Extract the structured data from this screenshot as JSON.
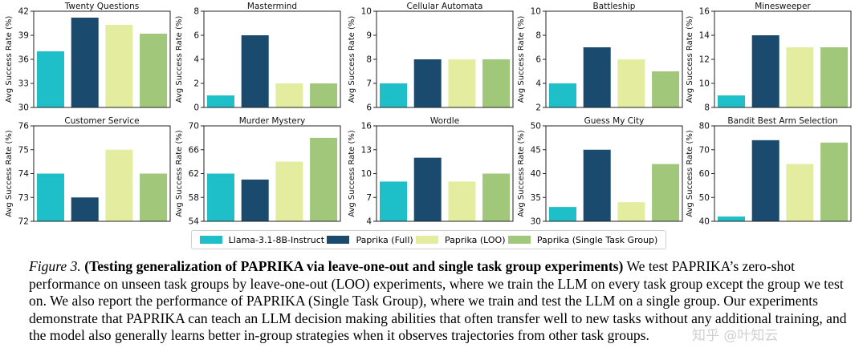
{
  "chart_data": [
    {
      "type": "bar",
      "title": "Twenty Questions",
      "ylabel": "Avg Success Rate (%)",
      "ylim": [
        30,
        42
      ],
      "yticks": [
        30,
        33,
        36,
        39,
        42
      ],
      "categories": [
        "Llama-3.1-8B-Instruct",
        "Paprika (Full)",
        "Paprika (LOO)",
        "Paprika (Single Task Group)"
      ],
      "values": [
        37.0,
        41.2,
        40.3,
        39.2
      ]
    },
    {
      "type": "bar",
      "title": "Mastermind",
      "ylabel": "Avg Success Rate (%)",
      "ylim": [
        0,
        8
      ],
      "yticks": [
        0,
        2,
        4,
        6,
        8
      ],
      "categories": [
        "Llama-3.1-8B-Instruct",
        "Paprika (Full)",
        "Paprika (LOO)",
        "Paprika (Single Task Group)"
      ],
      "values": [
        1.0,
        6.0,
        2.0,
        2.0
      ]
    },
    {
      "type": "bar",
      "title": "Cellular Automata",
      "ylabel": "Avg Success Rate (%)",
      "ylim": [
        6,
        10
      ],
      "yticks": [
        6,
        7,
        8,
        9,
        10
      ],
      "categories": [
        "Llama-3.1-8B-Instruct",
        "Paprika (Full)",
        "Paprika (LOO)",
        "Paprika (Single Task Group)"
      ],
      "values": [
        7.0,
        8.0,
        8.0,
        8.0
      ]
    },
    {
      "type": "bar",
      "title": "Battleship",
      "ylabel": "Avg Success Rate (%)",
      "ylim": [
        2,
        10
      ],
      "yticks": [
        2,
        4,
        6,
        8,
        10
      ],
      "categories": [
        "Llama-3.1-8B-Instruct",
        "Paprika (Full)",
        "Paprika (LOO)",
        "Paprika (Single Task Group)"
      ],
      "values": [
        4.0,
        7.0,
        6.0,
        5.0
      ]
    },
    {
      "type": "bar",
      "title": "Minesweeper",
      "ylabel": "Avg Success Rate (%)",
      "ylim": [
        8,
        16
      ],
      "yticks": [
        8,
        10,
        12,
        14,
        16
      ],
      "categories": [
        "Llama-3.1-8B-Instruct",
        "Paprika (Full)",
        "Paprika (LOO)",
        "Paprika (Single Task Group)"
      ],
      "values": [
        9.0,
        14.0,
        13.0,
        13.0
      ]
    },
    {
      "type": "bar",
      "title": "Customer Service",
      "ylabel": "Avg Success Rate (%)",
      "ylim": [
        72,
        76
      ],
      "yticks": [
        72,
        73,
        74,
        75,
        76
      ],
      "categories": [
        "Llama-3.1-8B-Instruct",
        "Paprika (Full)",
        "Paprika (LOO)",
        "Paprika (Single Task Group)"
      ],
      "values": [
        74.0,
        73.0,
        75.0,
        74.0
      ]
    },
    {
      "type": "bar",
      "title": "Murder Mystery",
      "ylabel": "Avg Success Rate (%)",
      "ylim": [
        54,
        70
      ],
      "yticks": [
        54,
        58,
        62,
        66,
        70
      ],
      "categories": [
        "Llama-3.1-8B-Instruct",
        "Paprika (Full)",
        "Paprika (LOO)",
        "Paprika (Single Task Group)"
      ],
      "values": [
        62.0,
        61.0,
        64.0,
        68.0
      ]
    },
    {
      "type": "bar",
      "title": "Wordle",
      "ylabel": "Avg Success Rate (%)",
      "ylim": [
        4,
        16
      ],
      "yticks": [
        4,
        7,
        10,
        13,
        16
      ],
      "categories": [
        "Llama-3.1-8B-Instruct",
        "Paprika (Full)",
        "Paprika (LOO)",
        "Paprika (Single Task Group)"
      ],
      "values": [
        9.0,
        12.0,
        9.0,
        10.0
      ]
    },
    {
      "type": "bar",
      "title": "Guess My City",
      "ylabel": "Avg Success Rate (%)",
      "ylim": [
        30,
        50
      ],
      "yticks": [
        30,
        35,
        40,
        45,
        50
      ],
      "categories": [
        "Llama-3.1-8B-Instruct",
        "Paprika (Full)",
        "Paprika (LOO)",
        "Paprika (Single Task Group)"
      ],
      "values": [
        33.0,
        45.0,
        34.0,
        42.0
      ]
    },
    {
      "type": "bar",
      "title": "Bandit Best Arm Selection",
      "ylabel": "Avg Success Rate (%)",
      "ylim": [
        40,
        80
      ],
      "yticks": [
        40,
        50,
        60,
        70,
        80
      ],
      "categories": [
        "Llama-3.1-8B-Instruct",
        "Paprika (Full)",
        "Paprika (LOO)",
        "Paprika (Single Task Group)"
      ],
      "values": [
        42.0,
        74.0,
        64.0,
        73.0
      ]
    }
  ],
  "legend": [
    {
      "label": "Llama-3.1-8B-Instruct",
      "color": "#1fbfca"
    },
    {
      "label": "Paprika (Full)",
      "color": "#1a4b6e"
    },
    {
      "label": "Paprika (LOO)",
      "color": "#e4ec9f"
    },
    {
      "label": "Paprika (Single Task Group)",
      "color": "#a0c77a"
    }
  ],
  "legend_placement": "bottom-center",
  "grid": false,
  "caption": {
    "figure_label": "Figure 3.",
    "bold_title": "(Testing generalization of PAPRIKA via leave-one-out and single task group experiments)",
    "body": "We test PAPRIKA’s zero-shot performance on unseen task groups by leave-one-out (LOO) experiments, where we train the LLM on every task group except the group we test on. We also report the performance of PAPRIKA (Single Task Group), where we train and test the LLM on a single group. Our experiments demonstrate that PAPRIKA can teach an LLM decision making abilities that often transfer well to new tasks without any additional training, and the model also generally learns better in-group strategies when it observes trajectories from other task groups."
  },
  "watermark": "知乎 @叶知云"
}
